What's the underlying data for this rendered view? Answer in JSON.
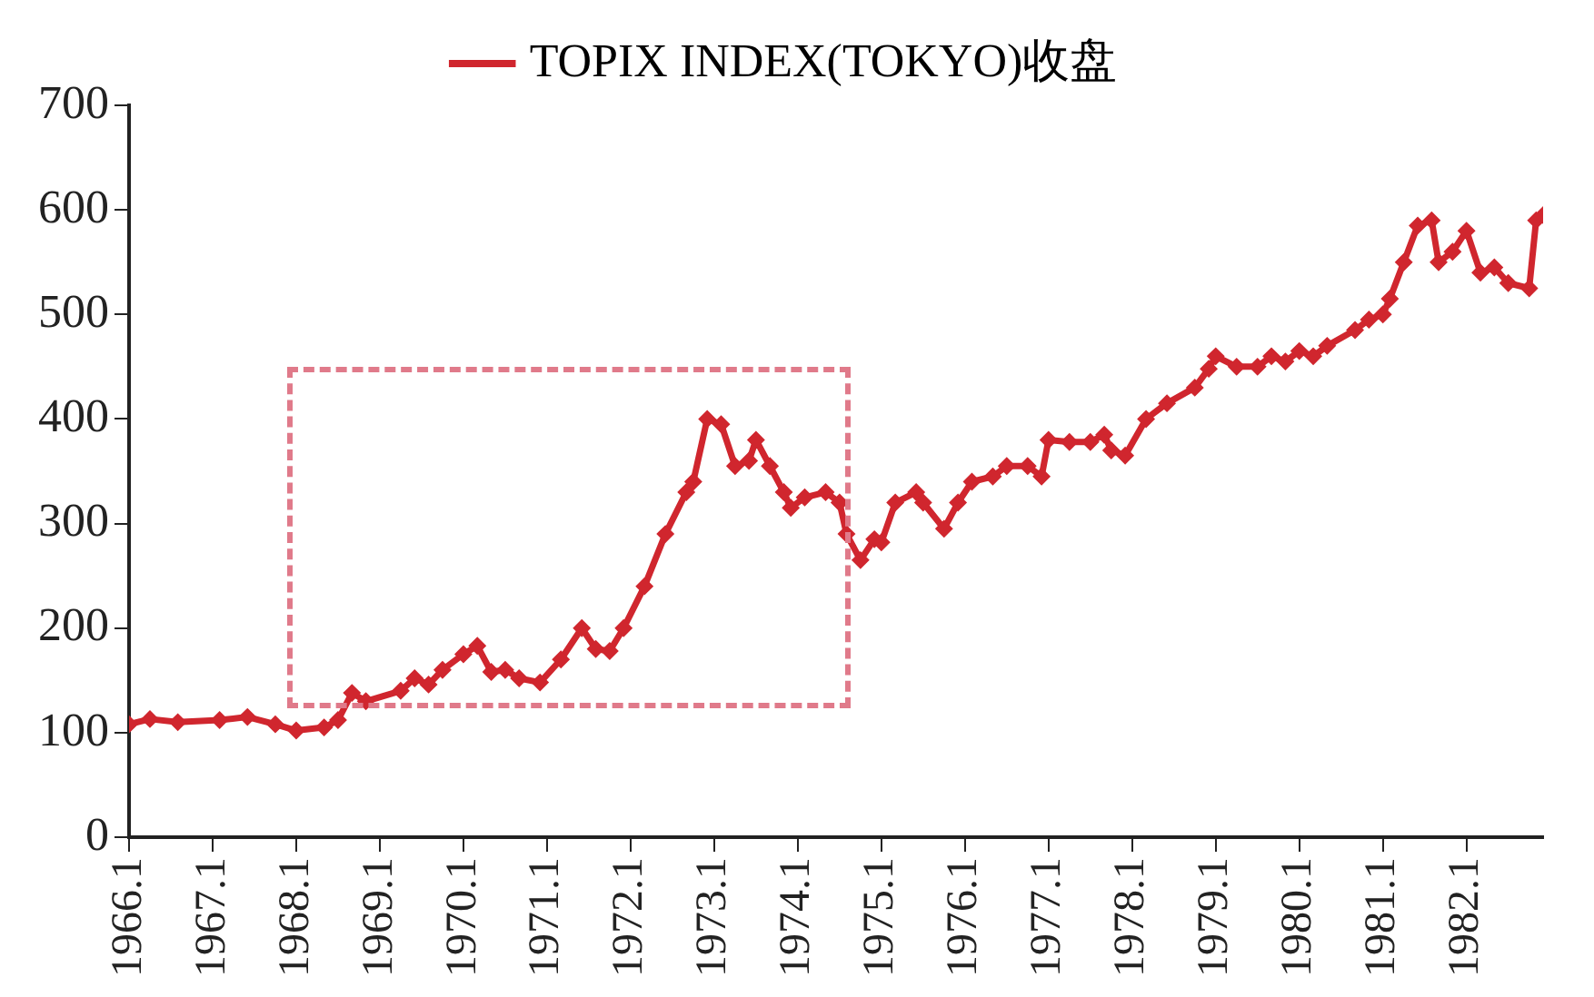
{
  "chart_data": {
    "type": "line",
    "x": [
      "1966-01",
      "1966-04",
      "1966-08",
      "1967-02",
      "1967-06",
      "1967-10",
      "1968-01",
      "1968-05",
      "1968-07",
      "1968-09",
      "1968-11",
      "1969-04",
      "1969-06",
      "1969-08",
      "1969-10",
      "1970-01",
      "1970-03",
      "1970-05",
      "1970-07",
      "1970-09",
      "1970-12",
      "1971-03",
      "1971-06",
      "1971-08",
      "1971-10",
      "1971-12",
      "1972-03",
      "1972-06",
      "1972-09",
      "1972-10",
      "1972-12",
      "1973-02",
      "1973-04",
      "1973-06",
      "1973-07",
      "1973-09",
      "1973-11",
      "1973-12",
      "1974-02",
      "1974-05",
      "1974-07",
      "1974-08",
      "1974-10",
      "1974-12",
      "1975-01",
      "1975-03",
      "1975-06",
      "1975-07",
      "1975-10",
      "1975-12",
      "1976-02",
      "1976-05",
      "1976-07",
      "1976-10",
      "1976-12",
      "1977-01",
      "1977-04",
      "1977-07",
      "1977-09",
      "1977-10",
      "1977-12",
      "1978-03",
      "1978-06",
      "1978-10",
      "1978-12",
      "1979-01",
      "1979-04",
      "1979-07",
      "1979-09",
      "1979-11",
      "1980-01",
      "1980-03",
      "1980-05",
      "1980-09",
      "1980-11",
      "1981-01",
      "1981-02",
      "1981-04",
      "1981-06",
      "1981-08",
      "1981-09",
      "1981-11",
      "1982-01",
      "1982-03",
      "1982-05",
      "1982-07",
      "1982-10",
      "1982-11",
      "1982-12"
    ],
    "series": [
      {
        "name": "TOPIX INDEX(TOKYO)收盘",
        "color": "#d0262e",
        "values": [
          108,
          113,
          110,
          112,
          115,
          108,
          102,
          105,
          112,
          138,
          130,
          140,
          152,
          146,
          160,
          175,
          183,
          158,
          160,
          152,
          148,
          170,
          200,
          180,
          178,
          200,
          240,
          290,
          330,
          340,
          400,
          395,
          355,
          360,
          380,
          355,
          330,
          315,
          325,
          330,
          320,
          290,
          265,
          285,
          282,
          320,
          330,
          320,
          295,
          320,
          340,
          345,
          355,
          355,
          345,
          380,
          378,
          378,
          385,
          370,
          365,
          400,
          415,
          430,
          448,
          460,
          450,
          450,
          460,
          455,
          465,
          460,
          470,
          485,
          495,
          500,
          515,
          550,
          585,
          590,
          550,
          560,
          580,
          540,
          545,
          530,
          525,
          590,
          595
        ]
      }
    ],
    "xlim": [
      "1966-01",
      "1982-12"
    ],
    "xticks": [
      {
        "value": "1966-01",
        "label": "1966.1"
      },
      {
        "value": "1967-01",
        "label": "1967.1"
      },
      {
        "value": "1968-01",
        "label": "1968.1"
      },
      {
        "value": "1969-01",
        "label": "1969.1"
      },
      {
        "value": "1970-01",
        "label": "1970.1"
      },
      {
        "value": "1971-01",
        "label": "1971.1"
      },
      {
        "value": "1972-01",
        "label": "1972.1"
      },
      {
        "value": "1973-01",
        "label": "1973.1"
      },
      {
        "value": "1974-01",
        "label": "1974.1"
      },
      {
        "value": "1975-01",
        "label": "1975.1"
      },
      {
        "value": "1976-01",
        "label": "1976.1"
      },
      {
        "value": "1977-01",
        "label": "1977.1"
      },
      {
        "value": "1978-01",
        "label": "1978.1"
      },
      {
        "value": "1979-01",
        "label": "1979.1"
      },
      {
        "value": "1980-01",
        "label": "1980.1"
      },
      {
        "value": "1981-01",
        "label": "1981.1"
      },
      {
        "value": "1982-01",
        "label": "1982.1"
      }
    ],
    "ylim": [
      0,
      700
    ],
    "yticks": [
      0,
      100,
      200,
      300,
      400,
      500,
      600,
      700
    ],
    "legend": "top",
    "marker": "diamond",
    "line_style": "solid",
    "grid": false
  }
}
